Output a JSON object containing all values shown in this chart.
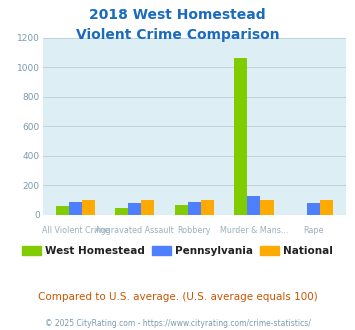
{
  "title_line1": "2018 West Homestead",
  "title_line2": "Violent Crime Comparison",
  "cat_labels_row1": [
    "",
    "Aggravated Assault",
    "",
    "Murder & Mans...",
    ""
  ],
  "cat_labels_row2": [
    "All Violent Crime",
    "",
    "Robbery",
    "",
    "Rape"
  ],
  "west_homestead": [
    60,
    47,
    65,
    1063,
    0
  ],
  "pennsylvania": [
    82,
    80,
    88,
    125,
    80
  ],
  "national": [
    100,
    100,
    100,
    100,
    100
  ],
  "colors": {
    "west_homestead": "#80cc00",
    "pennsylvania": "#4d7fff",
    "national": "#ffaa00"
  },
  "ylim": [
    0,
    1200
  ],
  "yticks": [
    0,
    200,
    400,
    600,
    800,
    1000,
    1200
  ],
  "plot_bg": "#ddeef4",
  "grid_color": "#b8cfd8",
  "title_color": "#1a6bbf",
  "xlabel_color": "#9ab0bc",
  "footer_text": "Compared to U.S. average. (U.S. average equals 100)",
  "credit_text": "© 2025 CityRating.com - https://www.cityrating.com/crime-statistics/",
  "legend_labels": [
    "West Homestead",
    "Pennsylvania",
    "National"
  ]
}
